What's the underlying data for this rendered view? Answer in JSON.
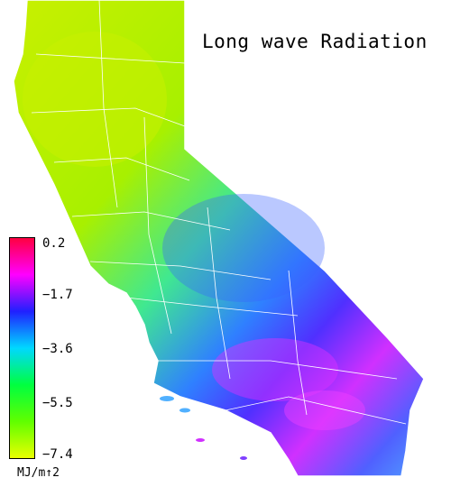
{
  "title": "Long wave Radiation",
  "legend": {
    "ticks": [
      "0.2",
      "−1.7",
      "−3.6",
      "−5.5",
      "−7.4"
    ],
    "unit": "MJ/m↑2",
    "colors": [
      "#ff0040",
      "#ff00ff",
      "#2020ff",
      "#00d8ff",
      "#00ff40",
      "#60ff00",
      "#e8ff00"
    ]
  },
  "map_colors": {
    "north": "#b4f000",
    "central": "#40e890",
    "east": "#3050ff",
    "south": "#e030ff",
    "outline": "#ffffff"
  }
}
